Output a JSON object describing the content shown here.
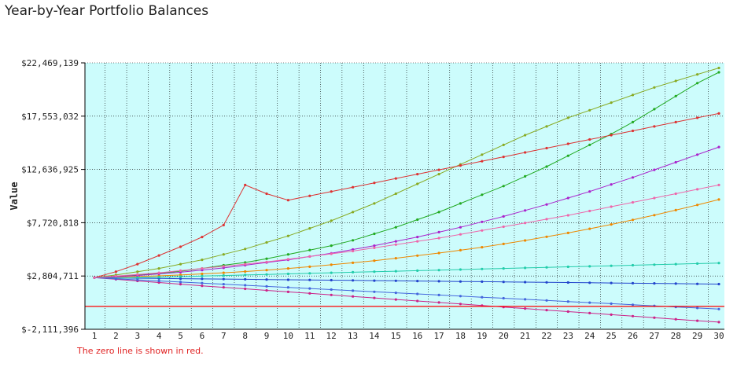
{
  "title": "Year-by-Year Portfolio Balances",
  "note": "The zero line is shown in red.",
  "chart_data": {
    "type": "line",
    "title": "Year-by-Year Portfolio Balances",
    "xlabel": "",
    "ylabel": "Value",
    "x": [
      1,
      2,
      3,
      4,
      5,
      6,
      7,
      8,
      9,
      10,
      11,
      12,
      13,
      14,
      15,
      16,
      17,
      18,
      19,
      20,
      21,
      22,
      23,
      24,
      25,
      26,
      27,
      28,
      29,
      30
    ],
    "ylim": [
      -2111396,
      22469139
    ],
    "yticks": [
      -2111396,
      2804711,
      7720818,
      12636925,
      17553032,
      22469139
    ],
    "ytick_labels": [
      "$-2,111,396",
      "$2,804,711",
      "$7,720,818",
      "$12,636,925",
      "$17,553,032",
      "$22,469,139"
    ],
    "grid": true,
    "zero_line": 0,
    "colors": {
      "plot_background": "#ccfcfc",
      "grid": "#000000",
      "zero_line": "#ff0000",
      "series": [
        "#22aa22",
        "#ee8800",
        "#2244cc",
        "#cc2288",
        "#88aa22",
        "#aa22cc",
        "#22ccaa",
        "#dd3333",
        "#4466dd",
        "#ee66aa"
      ]
    },
    "series": [
      {
        "values": [
          2650000,
          2780000,
          2900000,
          3050000,
          3250000,
          3500000,
          3800000,
          4050000,
          4400000,
          4800000,
          5200000,
          5600000,
          6100000,
          6700000,
          7300000,
          8000000,
          8700000,
          9500000,
          10300000,
          11100000,
          12000000,
          12900000,
          13900000,
          14900000,
          15900000,
          17000000,
          18200000,
          19400000,
          20600000,
          21600000
        ]
      },
      {
        "values": [
          2650000,
          2700000,
          2760000,
          2820000,
          2900000,
          3000000,
          3100000,
          3220000,
          3350000,
          3500000,
          3660000,
          3840000,
          4020000,
          4220000,
          4440000,
          4680000,
          4920000,
          5180000,
          5460000,
          5760000,
          6080000,
          6420000,
          6780000,
          7160000,
          7560000,
          7980000,
          8420000,
          8880000,
          9360000,
          9860000
        ]
      },
      {
        "values": [
          2650000,
          2620000,
          2600000,
          2580000,
          2560000,
          2540000,
          2520000,
          2500000,
          2480000,
          2460000,
          2440000,
          2420000,
          2400000,
          2380000,
          2360000,
          2340000,
          2320000,
          2300000,
          2280000,
          2260000,
          2240000,
          2220000,
          2200000,
          2180000,
          2160000,
          2140000,
          2120000,
          2100000,
          2080000,
          2060000
        ]
      },
      {
        "values": [
          2650000,
          2500000,
          2350000,
          2200000,
          2050000,
          1900000,
          1760000,
          1620000,
          1480000,
          1340000,
          1200000,
          1060000,
          920000,
          780000,
          640000,
          500000,
          360000,
          220000,
          80000,
          -60000,
          -200000,
          -340000,
          -480000,
          -620000,
          -760000,
          -900000,
          -1040000,
          -1180000,
          -1320000,
          -1450000
        ]
      },
      {
        "values": [
          2650000,
          2900000,
          3200000,
          3500000,
          3900000,
          4300000,
          4800000,
          5300000,
          5900000,
          6500000,
          7200000,
          7900000,
          8700000,
          9500000,
          10400000,
          11300000,
          12200000,
          13100000,
          14000000,
          14900000,
          15800000,
          16600000,
          17400000,
          18100000,
          18800000,
          19500000,
          20200000,
          20800000,
          21400000,
          22000000
        ]
      },
      {
        "values": [
          2650000,
          2720000,
          2850000,
          3000000,
          3150000,
          3350000,
          3550000,
          3800000,
          4050000,
          4300000,
          4600000,
          4900000,
          5250000,
          5600000,
          6000000,
          6400000,
          6850000,
          7300000,
          7800000,
          8300000,
          8850000,
          9400000,
          10000000,
          10600000,
          11250000,
          11900000,
          12600000,
          13300000,
          14000000,
          14700000
        ]
      },
      {
        "values": [
          2650000,
          2600000,
          2650000,
          2700000,
          2750000,
          2800000,
          2850000,
          2900000,
          2950000,
          3000000,
          3050000,
          3100000,
          3150000,
          3200000,
          3250000,
          3300000,
          3350000,
          3400000,
          3450000,
          3500000,
          3550000,
          3600000,
          3650000,
          3700000,
          3750000,
          3800000,
          3850000,
          3900000,
          3950000,
          4000000
        ]
      },
      {
        "values": [
          2650000,
          3200000,
          3900000,
          4700000,
          5500000,
          6400000,
          7500000,
          11200000,
          10400000,
          9800000,
          10200000,
          10600000,
          11000000,
          11400000,
          11800000,
          12200000,
          12600000,
          13000000,
          13400000,
          13800000,
          14200000,
          14600000,
          15000000,
          15400000,
          15800000,
          16200000,
          16600000,
          17000000,
          17400000,
          17800000
        ]
      },
      {
        "values": [
          2650000,
          2550000,
          2450000,
          2350000,
          2250000,
          2150000,
          2050000,
          1950000,
          1850000,
          1750000,
          1650000,
          1550000,
          1450000,
          1350000,
          1250000,
          1150000,
          1050000,
          950000,
          850000,
          750000,
          650000,
          550000,
          450000,
          350000,
          250000,
          150000,
          50000,
          -50000,
          -150000,
          -250000
        ]
      },
      {
        "values": [
          2650000,
          2800000,
          2950000,
          3100000,
          3300000,
          3500000,
          3700000,
          3900000,
          4100000,
          4350000,
          4600000,
          4850000,
          5100000,
          5400000,
          5700000,
          6000000,
          6300000,
          6650000,
          7000000,
          7350000,
          7700000,
          8050000,
          8400000,
          8800000,
          9200000,
          9600000,
          10000000,
          10400000,
          10800000,
          11200000
        ]
      }
    ]
  }
}
